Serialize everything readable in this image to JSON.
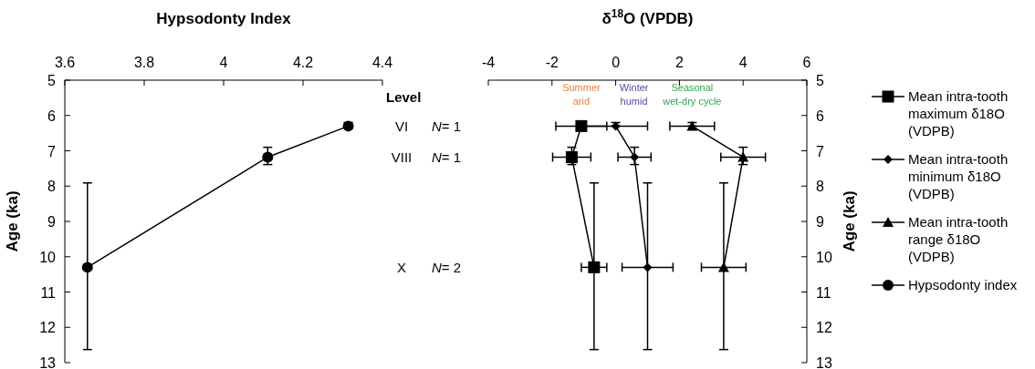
{
  "chart_data": [
    {
      "type": "line",
      "xlabel": "Hypsodonty Index",
      "ylabel": "Age (ka)",
      "xlim": [
        3.6,
        4.4
      ],
      "xticks": [
        3.6,
        3.8,
        4,
        4.2,
        4.4
      ],
      "ylim": [
        13,
        5
      ],
      "yticks": [
        5,
        6,
        7,
        8,
        9,
        10,
        11,
        12,
        13
      ],
      "grid": false,
      "legend": false,
      "marker": "circle",
      "line_style": "solid",
      "series": [
        {
          "name": "Hypsodonty index",
          "color": "#000000",
          "x": [
            4.314,
            4.111,
            3.657
          ],
          "values": [
            6.3,
            7.18,
            10.3
          ],
          "errors": [
            [
              6.2,
              6.3
            ],
            [
              6.9,
              7.39
            ],
            [
              7.91,
              12.63
            ]
          ]
        }
      ]
    },
    {
      "type": "line",
      "xlabel": "δ$^{18}$O (VPDB)",
      "ylabel": "Age (ka)",
      "xlim": [
        -4,
        6
      ],
      "xticks": [
        -4,
        -2,
        0,
        2,
        4,
        6
      ],
      "ylim": [
        13,
        5
      ],
      "yticks": [
        5,
        6,
        7,
        8,
        9,
        10,
        11,
        12,
        13
      ],
      "grid": false,
      "legend": "right",
      "line_style": "solid",
      "series": [
        {
          "name": "Mean intra-tooth maximum δ18O (VDPB)",
          "color": "#000000",
          "marker": "square",
          "x": [
            -1.08,
            -1.38,
            -0.68
          ],
          "values": [
            6.3,
            7.18,
            10.3
          ],
          "errors": [
            null,
            [
              6.9,
              7.39
            ],
            [
              7.91,
              12.63
            ]
          ],
          "xerrors": [
            0.8,
            0.6,
            0.4
          ]
        },
        {
          "name": "Mean intra-tooth minimum δ18O (VDPB)",
          "color": "#000000",
          "marker": "diamond",
          "x": [
            0,
            0.59,
            1
          ],
          "values": [
            6.3,
            7.18,
            10.3
          ],
          "errors": [
            [
              6.2,
              6.3
            ],
            [
              6.9,
              7.39
            ],
            [
              7.91,
              12.63
            ]
          ],
          "xerrors": [
            1,
            0.52,
            0.8
          ]
        },
        {
          "name": "Mean intra-tooth range δ18O (VDPB)",
          "color": "#000000",
          "marker": "triangle",
          "x": [
            2.4,
            4,
            3.39
          ],
          "values": [
            6.3,
            7.18,
            10.3
          ],
          "errors": [
            [
              6.2,
              6.3
            ],
            [
              6.9,
              7.39
            ],
            [
              7.91,
              12.63
            ]
          ],
          "xerrors": [
            0.7,
            0.7,
            0.7
          ]
        }
      ],
      "annotations": [
        "Level",
        "VI",
        "N= 1",
        "VIII",
        "N= 1",
        "X",
        "N= 2",
        "Summer\narid",
        "Winter\nhumid",
        "Seasonal\nwet-dry cycle"
      ]
    }
  ]
}
